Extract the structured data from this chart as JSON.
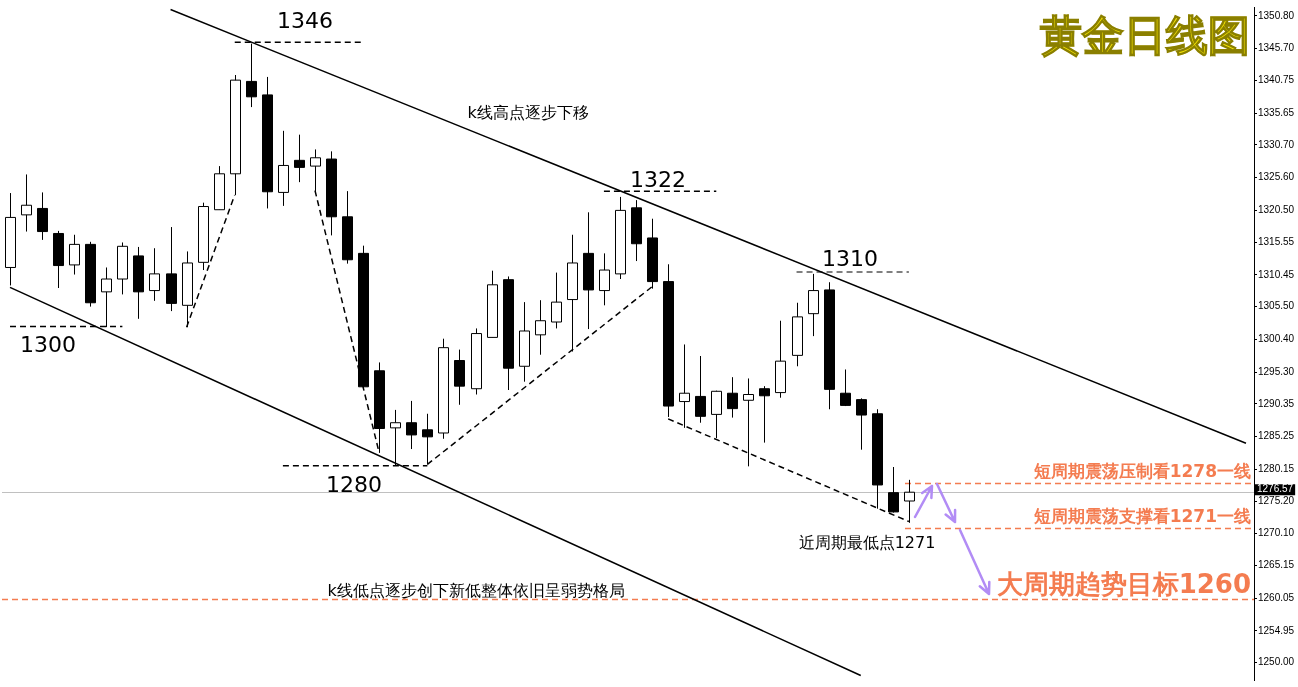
{
  "chart_data": {
    "type": "candlestick",
    "title": "黄金日线图",
    "categories": [
      null,
      null,
      null,
      null,
      null,
      null,
      null,
      null,
      null,
      null,
      null,
      null,
      null,
      null,
      null,
      null,
      null,
      null,
      null,
      null,
      null,
      null,
      null,
      null,
      null,
      null,
      null,
      null,
      null,
      null,
      null,
      null,
      null,
      null,
      null,
      null,
      null,
      null,
      null,
      null,
      null,
      null,
      null,
      null,
      null,
      null,
      null,
      null,
      null,
      null,
      null,
      null,
      null,
      null,
      null,
      null,
      null,
      null,
      null,
      null,
      null,
      null,
      null,
      null,
      null,
      null,
      null,
      null,
      null,
      null,
      null,
      null,
      null,
      null,
      null,
      null,
      null,
      null
    ],
    "ohlc": [
      [
        1311.6,
        1323.2,
        1308.8,
        1319.4
      ],
      [
        1319.8,
        1326.1,
        1317.2,
        1321.3
      ],
      [
        1320.8,
        1323.3,
        1315.9,
        1317.2
      ],
      [
        1316.9,
        1317.3,
        1308.4,
        1311.9
      ],
      [
        1312.0,
        1316.7,
        1310.5,
        1315.2
      ],
      [
        1315.2,
        1315.6,
        1305.5,
        1306.1
      ],
      [
        1307.8,
        1311.6,
        1302.3,
        1309.8
      ],
      [
        1309.8,
        1315.5,
        1307.4,
        1314.9
      ],
      [
        1313.4,
        1314.8,
        1303.6,
        1307.8
      ],
      [
        1308.0,
        1314.6,
        1306.4,
        1310.6
      ],
      [
        1310.6,
        1317.9,
        1304.8,
        1306.0
      ],
      [
        1305.7,
        1314.1,
        1302.3,
        1312.3
      ],
      [
        1312.4,
        1321.7,
        1311.2,
        1321.1
      ],
      [
        1320.6,
        1327.4,
        1320.6,
        1326.2
      ],
      [
        1326.2,
        1341.6,
        1322.9,
        1340.8
      ],
      [
        1340.6,
        1346.5,
        1336.6,
        1338.2
      ],
      [
        1338.5,
        1341.3,
        1320.8,
        1323.4
      ],
      [
        1323.3,
        1332.9,
        1321.2,
        1327.5
      ],
      [
        1328.3,
        1332.3,
        1324.9,
        1327.2
      ],
      [
        1327.4,
        1330.0,
        1323.3,
        1328.7
      ],
      [
        1328.5,
        1329.7,
        1316.6,
        1319.5
      ],
      [
        1319.5,
        1323.5,
        1312.2,
        1312.8
      ],
      [
        1313.8,
        1315.0,
        1292.5,
        1293.0
      ],
      [
        1295.5,
        1296.8,
        1282.7,
        1286.5
      ],
      [
        1286.6,
        1289.4,
        1280.8,
        1287.4
      ],
      [
        1287.4,
        1290.8,
        1283.3,
        1285.5
      ],
      [
        1286.3,
        1288.8,
        1280.9,
        1285.2
      ],
      [
        1285.8,
        1300.5,
        1284.9,
        1299.1
      ],
      [
        1297.1,
        1298.8,
        1290.2,
        1293.1
      ],
      [
        1292.7,
        1302.1,
        1291.8,
        1301.3
      ],
      [
        1300.7,
        1311.1,
        1300.7,
        1308.9
      ],
      [
        1309.7,
        1310.2,
        1292.5,
        1295.9
      ],
      [
        1296.2,
        1306.2,
        1293.8,
        1301.7
      ],
      [
        1301.1,
        1306.5,
        1298.0,
        1303.3
      ],
      [
        1303.1,
        1310.8,
        1302.1,
        1306.2
      ],
      [
        1306.6,
        1316.7,
        1298.5,
        1312.3
      ],
      [
        1313.8,
        1320.2,
        1302.0,
        1308.1
      ],
      [
        1308.0,
        1313.8,
        1305.7,
        1311.2
      ],
      [
        1310.6,
        1322.6,
        1309.8,
        1320.5
      ],
      [
        1320.9,
        1322.1,
        1312.6,
        1315.3
      ],
      [
        1316.2,
        1319.2,
        1308.3,
        1309.4
      ],
      [
        1309.4,
        1312.1,
        1288.3,
        1290.0
      ],
      [
        1290.7,
        1299.6,
        1286.6,
        1292.0
      ],
      [
        1291.5,
        1297.8,
        1287.4,
        1288.4
      ],
      [
        1288.7,
        1292.4,
        1285.0,
        1292.3
      ],
      [
        1292.0,
        1294.5,
        1288.2,
        1289.6
      ],
      [
        1290.9,
        1294.3,
        1280.6,
        1291.8
      ],
      [
        1292.7,
        1293.1,
        1284.3,
        1291.6
      ],
      [
        1292.1,
        1303.3,
        1291.3,
        1297.0
      ],
      [
        1297.9,
        1306.1,
        1296.2,
        1303.9
      ],
      [
        1304.4,
        1310.6,
        1300.9,
        1308.0
      ],
      [
        1308.1,
        1309.3,
        1289.5,
        1292.6
      ],
      [
        1292.0,
        1295.7,
        1290.0,
        1290.1
      ],
      [
        1291.0,
        1291.2,
        1283.2,
        1288.6
      ],
      [
        1288.8,
        1289.5,
        1274.0,
        1277.7
      ],
      [
        1276.5,
        1280.5,
        1273.4,
        1273.5
      ],
      [
        1275.2,
        1278.5,
        1271.8,
        1276.57
      ],
      null,
      null,
      null,
      null,
      null,
      null,
      null,
      null,
      null,
      null,
      null,
      null,
      null,
      null,
      null,
      null,
      null,
      null,
      null,
      null,
      null
    ],
    "series": [
      {
        "type": "line",
        "color": "#000000",
        "line_style": "solid",
        "values": [
          null,
          null,
          null,
          null,
          null,
          null,
          null,
          null,
          null,
          null,
          1351.8,
          null,
          null,
          null,
          null,
          null,
          null,
          null,
          null,
          null,
          null,
          null,
          null,
          null,
          null,
          null,
          null,
          null,
          null,
          null,
          null,
          null,
          null,
          null,
          null,
          null,
          null,
          null,
          null,
          null,
          null,
          null,
          null,
          null,
          null,
          null,
          null,
          null,
          null,
          null,
          null,
          null,
          null,
          null,
          null,
          null,
          null,
          null,
          null,
          null,
          null,
          null,
          null,
          null,
          null,
          null,
          null,
          null,
          null,
          null,
          null,
          null,
          null,
          null,
          null,
          null,
          null,
          1284.2
        ]
      },
      {
        "type": "line",
        "color": "#000000",
        "line_style": "solid",
        "values": [
          1308.5,
          null,
          null,
          null,
          null,
          null,
          null,
          null,
          null,
          null,
          null,
          null,
          null,
          null,
          null,
          null,
          null,
          null,
          null,
          null,
          null,
          null,
          null,
          null,
          null,
          null,
          null,
          null,
          null,
          null,
          null,
          null,
          null,
          null,
          null,
          null,
          null,
          null,
          null,
          null,
          null,
          null,
          null,
          null,
          null,
          null,
          null,
          null,
          null,
          null,
          null,
          null,
          null,
          1248.0,
          null,
          null,
          null,
          null,
          null,
          null,
          null,
          null,
          null,
          null,
          null,
          null,
          null,
          null,
          null,
          null,
          null,
          null,
          null,
          null,
          null,
          null,
          null,
          null
        ]
      },
      {
        "type": "line",
        "color": "#000000",
        "line_style": "dashed",
        "values": [
          null,
          null,
          null,
          null,
          null,
          null,
          null,
          null,
          null,
          null,
          null,
          null,
          null,
          null,
          1346.7,
          null,
          null,
          null,
          null,
          null,
          null,
          null,
          1346.7,
          null,
          null,
          null,
          null,
          null,
          null,
          null,
          null,
          null,
          null,
          null,
          null,
          null,
          null,
          null,
          null,
          null,
          null,
          null,
          null,
          null,
          null,
          null,
          null,
          null,
          null,
          null,
          null,
          null,
          null,
          null,
          null,
          null,
          null,
          null,
          null,
          null,
          null,
          null,
          null,
          null,
          null,
          null,
          null,
          null,
          null,
          null,
          null,
          null,
          null,
          null,
          null,
          null,
          null,
          null
        ]
      },
      {
        "type": "line",
        "color": "#000000",
        "line_style": "dashed",
        "values": [
          null,
          null,
          null,
          null,
          null,
          null,
          null,
          null,
          null,
          null,
          null,
          null,
          null,
          null,
          null,
          null,
          null,
          null,
          null,
          null,
          null,
          null,
          null,
          null,
          null,
          null,
          null,
          null,
          null,
          null,
          null,
          null,
          null,
          null,
          null,
          null,
          null,
          1323.5,
          null,
          null,
          null,
          null,
          null,
          null,
          1323.5,
          null,
          null,
          null,
          null,
          null,
          null,
          null,
          null,
          null,
          null,
          null,
          null,
          null,
          null,
          null,
          null,
          null,
          null,
          null,
          null,
          null,
          null,
          null,
          null,
          null,
          null,
          null,
          null,
          null,
          null,
          null,
          null,
          null
        ]
      },
      {
        "type": "line",
        "color": "#555555",
        "line_style": "dashed",
        "values": [
          null,
          null,
          null,
          null,
          null,
          null,
          null,
          null,
          null,
          null,
          null,
          null,
          null,
          null,
          null,
          null,
          null,
          null,
          null,
          null,
          null,
          null,
          null,
          null,
          null,
          null,
          null,
          null,
          null,
          null,
          null,
          null,
          null,
          null,
          null,
          null,
          null,
          null,
          null,
          null,
          null,
          null,
          null,
          null,
          null,
          null,
          null,
          null,
          null,
          1310.9,
          null,
          null,
          null,
          null,
          null,
          null,
          1310.9,
          null,
          null,
          null,
          null,
          null,
          null,
          null,
          null,
          null,
          null,
          null,
          null,
          null,
          null,
          null,
          null,
          null,
          null,
          null,
          null,
          null
        ]
      },
      {
        "type": "line",
        "color": "#000000",
        "line_style": "dashed",
        "values": [
          1302.4,
          null,
          null,
          null,
          null,
          null,
          null,
          1302.4,
          null,
          null,
          null,
          null,
          null,
          null,
          null,
          null,
          null,
          null,
          null,
          null,
          null,
          null,
          null,
          null,
          null,
          null,
          null,
          null,
          null,
          null,
          null,
          null,
          null,
          null,
          null,
          null,
          null,
          null,
          null,
          null,
          null,
          null,
          null,
          null,
          null,
          null,
          null,
          null,
          null,
          null,
          null,
          null,
          null,
          null,
          null,
          null,
          null,
          null,
          null,
          null,
          null,
          null,
          null,
          null,
          null,
          null,
          null,
          null,
          null,
          null,
          null,
          null,
          null,
          null,
          null,
          null,
          null,
          null
        ]
      },
      {
        "type": "line",
        "color": "#000000",
        "line_style": "dashed",
        "values": [
          null,
          null,
          null,
          null,
          null,
          null,
          null,
          null,
          null,
          null,
          null,
          null,
          null,
          null,
          null,
          null,
          null,
          1280.7,
          null,
          null,
          null,
          null,
          null,
          null,
          null,
          null,
          1280.7,
          null,
          null,
          null,
          null,
          null,
          null,
          null,
          null,
          null,
          null,
          null,
          null,
          null,
          null,
          null,
          null,
          null,
          null,
          null,
          null,
          null,
          null,
          null,
          null,
          null,
          null,
          null,
          null,
          null,
          null,
          null,
          null,
          null,
          null,
          null,
          null,
          null,
          null,
          null,
          null,
          null,
          null,
          null,
          null,
          null,
          null,
          null,
          null,
          null,
          null,
          null
        ]
      },
      {
        "type": "line",
        "color": "#000000",
        "line_style": "dashed",
        "values": [
          null,
          null,
          null,
          null,
          null,
          null,
          null,
          null,
          null,
          null,
          null,
          1302.3,
          null,
          null,
          1322.9,
          null,
          null,
          null,
          null,
          null,
          null,
          null,
          null,
          null,
          null,
          null,
          null,
          null,
          null,
          null,
          null,
          null,
          null,
          null,
          null,
          null,
          null,
          null,
          null,
          null,
          null,
          null,
          null,
          null,
          null,
          null,
          null,
          null,
          null,
          null,
          null,
          null,
          null,
          null,
          null,
          null,
          null,
          null,
          null,
          null,
          null,
          null,
          null,
          null,
          null,
          null,
          null,
          null,
          null,
          null,
          null,
          null,
          null,
          null,
          null,
          null,
          null,
          null
        ]
      },
      {
        "type": "line",
        "color": "#000000",
        "line_style": "dashed",
        "values": [
          null,
          null,
          null,
          null,
          null,
          null,
          null,
          null,
          null,
          null,
          null,
          null,
          null,
          null,
          null,
          null,
          null,
          null,
          null,
          1323.6,
          null,
          null,
          null,
          1282.7,
          null,
          null,
          null,
          null,
          null,
          null,
          null,
          null,
          null,
          null,
          null,
          null,
          null,
          null,
          null,
          null,
          null,
          null,
          null,
          null,
          null,
          null,
          null,
          null,
          null,
          null,
          null,
          null,
          null,
          null,
          null,
          null,
          null,
          null,
          null,
          null,
          null,
          null,
          null,
          null,
          null,
          null,
          null,
          null,
          null,
          null,
          null,
          null,
          null,
          null,
          null,
          null,
          null,
          null
        ]
      },
      {
        "type": "line",
        "color": "#000000",
        "line_style": "dashed",
        "values": [
          null,
          null,
          null,
          null,
          null,
          null,
          null,
          null,
          null,
          null,
          null,
          null,
          null,
          null,
          null,
          null,
          null,
          null,
          null,
          null,
          null,
          null,
          null,
          null,
          null,
          null,
          1280.9,
          null,
          null,
          null,
          null,
          null,
          null,
          null,
          null,
          null,
          null,
          null,
          null,
          null,
          1308.6,
          null,
          null,
          null,
          null,
          null,
          null,
          null,
          null,
          null,
          null,
          null,
          null,
          null,
          null,
          null,
          null,
          null,
          null,
          null,
          null,
          null,
          null,
          null,
          null,
          null,
          null,
          null,
          null,
          null,
          null,
          null,
          null,
          null,
          null,
          null,
          null,
          null
        ]
      },
      {
        "type": "line",
        "color": "#000000",
        "line_style": "dashed",
        "values": [
          null,
          null,
          null,
          null,
          null,
          null,
          null,
          null,
          null,
          null,
          null,
          null,
          null,
          null,
          null,
          null,
          null,
          null,
          null,
          null,
          null,
          null,
          null,
          null,
          null,
          null,
          null,
          null,
          null,
          null,
          null,
          null,
          null,
          null,
          null,
          null,
          null,
          null,
          null,
          null,
          null,
          1288.0,
          null,
          null,
          null,
          null,
          null,
          null,
          null,
          null,
          null,
          null,
          null,
          null,
          null,
          null,
          1272.0,
          null,
          null,
          null,
          null,
          null,
          null,
          null,
          null,
          null,
          null,
          null,
          null,
          null,
          null,
          null,
          null,
          null,
          null,
          null,
          null,
          null
        ]
      }
    ],
    "ref_lines": [
      {
        "axis": "y",
        "value": 1278,
        "label": "短周期震荡压制看1278一线",
        "color": "#f47c50",
        "line_style": "dashed"
      },
      {
        "axis": "y",
        "value": 1271,
        "label": "短周期震荡支撑看1271一线",
        "color": "#f47c50",
        "line_style": "dashed"
      },
      {
        "axis": "y",
        "value": 1260,
        "label": "大周期趋势目标1260",
        "color": "#f47c50",
        "line_style": "dashed"
      },
      {
        "axis": "y",
        "value": 1276.57,
        "label": "1276.57",
        "color": "#c0c0c0",
        "line_style": "solid"
      }
    ],
    "annotations": [
      "1346",
      "1322",
      "1310",
      "1300",
      "1280",
      "k线高点逐步下移",
      "k线低点逐步创下新低整体依旧呈弱势格局",
      "近周期最低点1271"
    ],
    "ylim": [
      1247.3,
      1352.2
    ],
    "yticks": [
      {
        "value": 1250,
        "label": "1250.00"
      },
      {
        "value": 1254.95,
        "label": "1254.95"
      },
      {
        "value": 1260.05,
        "label": "1260.05"
      },
      {
        "value": 1265.15,
        "label": "1265.15"
      },
      {
        "value": 1270.1,
        "label": "1270.10"
      },
      {
        "value": 1275.2,
        "label": "1275.20"
      },
      {
        "value": 1280.15,
        "label": "1280.15"
      },
      {
        "value": 1285.25,
        "label": "1285.25"
      },
      {
        "value": 1290.35,
        "label": "1290.35"
      },
      {
        "value": 1295.3,
        "label": "1295.30"
      },
      {
        "value": 1300.4,
        "label": "1300.40"
      },
      {
        "value": 1305.5,
        "label": "1305.50"
      },
      {
        "value": 1310.45,
        "label": "1310.45"
      },
      {
        "value": 1315.55,
        "label": "1315.55"
      },
      {
        "value": 1320.5,
        "label": "1320.50"
      },
      {
        "value": 1325.6,
        "label": "1325.60"
      },
      {
        "value": 1330.7,
        "label": "1330.70"
      },
      {
        "value": 1335.65,
        "label": "1335.65"
      },
      {
        "value": 1340.75,
        "label": "1340.75"
      },
      {
        "value": 1345.7,
        "label": "1345.70"
      },
      {
        "value": 1350.8,
        "label": "1350.80"
      }
    ],
    "tick_labels": "y",
    "grid": false
  }
}
